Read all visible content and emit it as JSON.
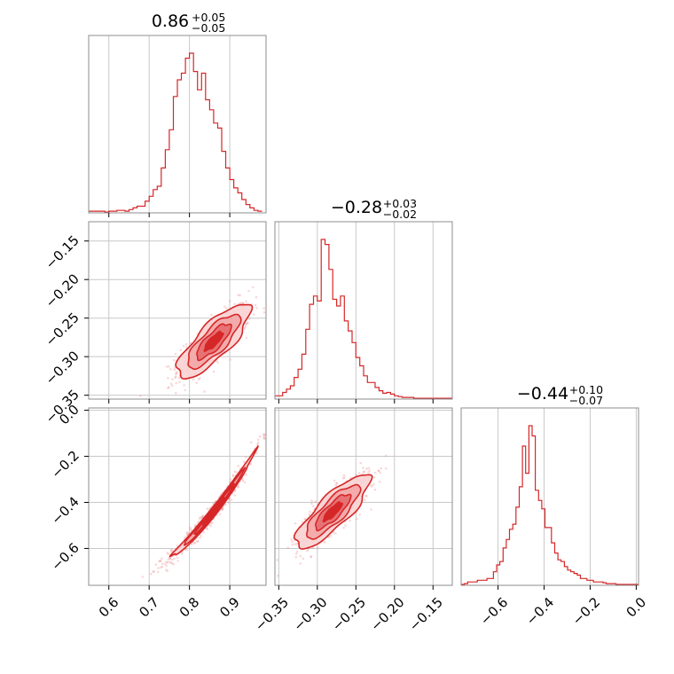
{
  "colors": {
    "series": "#d62728",
    "grid": "#c8c8c8",
    "frame": "#8c8c8c"
  },
  "chart_data": {
    "type": "corner",
    "titles": [
      {
        "main": "0.86",
        "upper": "+0.05",
        "lower": "−0.05"
      },
      {
        "main": "−0.28",
        "upper": "+0.03",
        "lower": "−0.02"
      },
      {
        "main": "−0.44",
        "upper": "+0.10",
        "lower": "−0.07"
      }
    ],
    "parameters": [
      {
        "range": [
          0.55,
          0.99
        ],
        "ticks": [
          0.6,
          0.7,
          0.8,
          0.9
        ],
        "tick_labels": [
          "0.6",
          "0.7",
          "0.8",
          "0.9"
        ]
      },
      {
        "range": [
          -0.355,
          -0.125
        ],
        "ticks": [
          -0.35,
          -0.3,
          -0.25,
          -0.2,
          -0.15
        ],
        "tick_labels": [
          "−0.35",
          "−0.30",
          "−0.25",
          "−0.20",
          "−0.15"
        ]
      },
      {
        "range": [
          -0.76,
          0.01
        ],
        "ticks": [
          -0.6,
          -0.4,
          -0.2,
          0.0
        ],
        "tick_labels": [
          "−0.6",
          "−0.4",
          "−0.2",
          "0.0"
        ]
      }
    ],
    "marginals": [
      {
        "edges_start": 0.55,
        "bin_width": 0.01,
        "counts": [
          0.01,
          0.01,
          0.01,
          0.01,
          0.005,
          0.01,
          0.01,
          0.015,
          0.015,
          0.01,
          0.02,
          0.03,
          0.04,
          0.04,
          0.07,
          0.1,
          0.14,
          0.16,
          0.27,
          0.38,
          0.5,
          0.7,
          0.8,
          0.84,
          0.93,
          0.96,
          0.85,
          0.74,
          0.84,
          0.68,
          0.62,
          0.54,
          0.51,
          0.37,
          0.27,
          0.2,
          0.15,
          0.12,
          0.08,
          0.05,
          0.03,
          0.015,
          0.01
        ]
      },
      {
        "edges_start": -0.355,
        "bin_width": 0.005,
        "counts": [
          0.02,
          0.02,
          0.04,
          0.06,
          0.08,
          0.13,
          0.18,
          0.27,
          0.42,
          0.57,
          0.62,
          0.59,
          0.96,
          0.93,
          0.78,
          0.6,
          0.56,
          0.62,
          0.47,
          0.41,
          0.34,
          0.25,
          0.2,
          0.14,
          0.1,
          0.1,
          0.07,
          0.05,
          0.035,
          0.04,
          0.03,
          0.02,
          0.015,
          0.01,
          0.01,
          0.01,
          0.005,
          0.005,
          0.005,
          0.005,
          0.005,
          0.005,
          0.005,
          0.005,
          0.005,
          0.005
        ]
      },
      {
        "edges_start": -0.76,
        "bin_width": 0.014,
        "counts": [
          0.005,
          0.01,
          0.02,
          0.02,
          0.02,
          0.03,
          0.03,
          0.03,
          0.04,
          0.04,
          0.08,
          0.12,
          0.14,
          0.22,
          0.27,
          0.33,
          0.36,
          0.46,
          0.58,
          0.82,
          0.66,
          0.94,
          0.88,
          0.56,
          0.5,
          0.45,
          0.34,
          0.34,
          0.25,
          0.19,
          0.15,
          0.14,
          0.11,
          0.09,
          0.08,
          0.07,
          0.06,
          0.04,
          0.04,
          0.03,
          0.03,
          0.02,
          0.02,
          0.02,
          0.015,
          0.01,
          0.01,
          0.01,
          0.005,
          0.005,
          0.005,
          0.005,
          0.005,
          0.005,
          0.005
        ]
      }
    ],
    "means": [
      0.86,
      -0.28,
      -0.44
    ],
    "std_devs": [
      0.045,
      0.024,
      0.08
    ],
    "correlations": {
      "1_0": 0.8,
      "2_0": 0.985,
      "2_1": 0.83
    }
  }
}
